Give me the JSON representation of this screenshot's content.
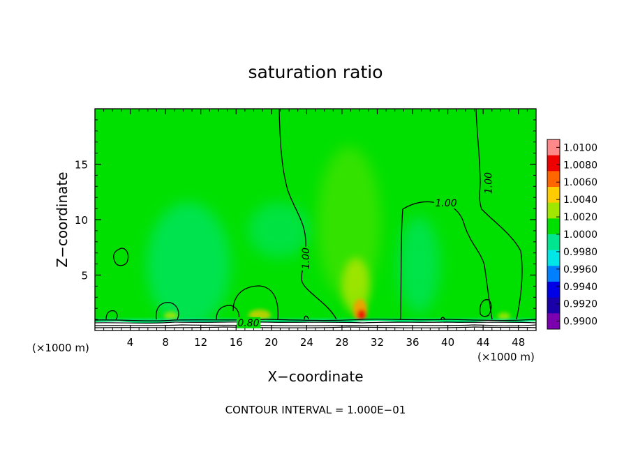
{
  "chart_data": {
    "type": "heatmap",
    "title": "saturation ratio",
    "xlabel": "X−coordinate",
    "ylabel": "Z−coordinate",
    "x_unit_left": "(×1000 m)",
    "x_unit_right": "(×1000 m)",
    "footer": "CONTOUR INTERVAL = 1.000E−01",
    "xlim": [
      0,
      50
    ],
    "ylim": [
      0,
      20
    ],
    "x_ticks": [
      4,
      8,
      12,
      16,
      20,
      24,
      28,
      32,
      36,
      40,
      44,
      48
    ],
    "x_tick_labels": [
      "4",
      "8",
      "12",
      "16",
      "20",
      "24",
      "28",
      "32",
      "36",
      "40",
      "44",
      "48"
    ],
    "y_ticks": [
      5,
      10,
      15
    ],
    "y_tick_labels": [
      "5",
      "10",
      "15"
    ],
    "colorbar": {
      "levels": [
        0.99,
        0.992,
        0.994,
        0.996,
        0.998,
        1.0,
        1.002,
        1.004,
        1.006,
        1.008,
        1.01
      ],
      "labels": [
        "0.9900",
        "0.9920",
        "0.9940",
        "0.9960",
        "0.9980",
        "1.0000",
        "1.0020",
        "1.0040",
        "1.0060",
        "1.0080",
        "1.0100"
      ],
      "colors": [
        "#7a00b0",
        "#1a00a8",
        "#0000e6",
        "#0080ff",
        "#00e6e6",
        "#00e690",
        "#00e000",
        "#a0e600",
        "#ffcc00",
        "#ff6600",
        "#ee0000",
        "#ff8888"
      ]
    },
    "contour_labels": [
      {
        "text": "1.00",
        "x": 23.9,
        "z": 6.5
      },
      {
        "text": "1.00",
        "x": 39.8,
        "z": 11.5
      },
      {
        "text": "1.00",
        "x": 44.6,
        "z": 13.3
      },
      {
        "text": "0.80",
        "x": 17.4,
        "z": 0.7
      }
    ]
  }
}
